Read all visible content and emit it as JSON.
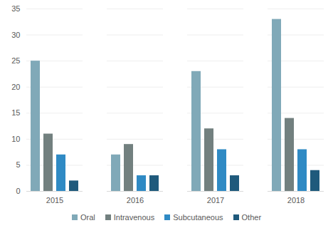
{
  "chart_data": {
    "type": "bar",
    "categories": [
      "2015",
      "2016",
      "2017",
      "2018"
    ],
    "series": [
      {
        "name": "Oral",
        "color": "#80a9b8",
        "values": [
          25,
          7,
          23,
          33
        ]
      },
      {
        "name": "Intravenous",
        "color": "#72807f",
        "values": [
          11,
          9,
          12,
          14
        ]
      },
      {
        "name": "Subcutaneous",
        "color": "#2f8ac4",
        "values": [
          7,
          3,
          8,
          8
        ]
      },
      {
        "name": "Other",
        "color": "#1f5a7c",
        "values": [
          2,
          3,
          3,
          4
        ]
      }
    ],
    "ylim": [
      0,
      35
    ],
    "yticks": [
      0,
      5,
      10,
      15,
      20,
      25,
      30,
      35
    ],
    "grid": true,
    "legend": "bottom"
  }
}
